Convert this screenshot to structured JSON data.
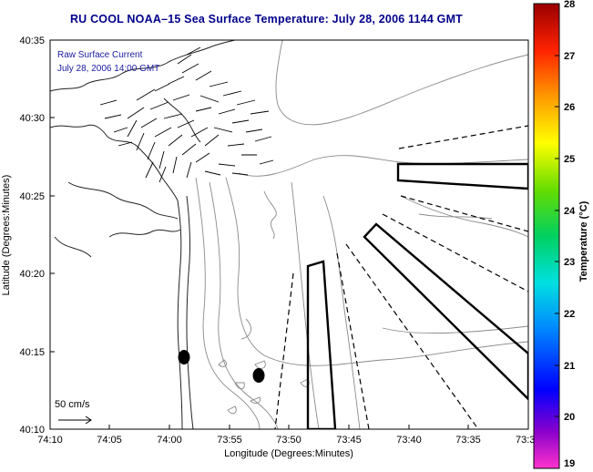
{
  "title": "RU COOL  NOAA–15  Sea Surface Temperature:  July 28, 2006 1144 GMT",
  "overlay": {
    "line1": "Raw Surface Current",
    "line2": "July 28, 2006 14:00 GMT",
    "scale_label": "50 cm/s"
  },
  "axes": {
    "xlabel": "Longitude (Degrees:Minutes)",
    "ylabel": "Latitude (Degrees:Minutes)",
    "xticks": [
      "74:10",
      "74:05",
      "74:00",
      "73:55",
      "73:50",
      "73:45",
      "73:40",
      "73:35",
      "73:3"
    ],
    "yticks": [
      "40:35",
      "40:30",
      "40:25",
      "40:20",
      "40:15",
      "40:10"
    ]
  },
  "colorbar": {
    "label": "Temperature (°C)",
    "ticks": [
      "28",
      "27",
      "26",
      "25",
      "24",
      "23",
      "22",
      "21",
      "20",
      "19"
    ],
    "min": 19,
    "max": 28
  },
  "colors": {
    "title": "#00008b",
    "overlay_text": "#1a1aa0",
    "contour": "#8a8a8a",
    "coast": "#222222"
  },
  "features": {
    "current_arrows": "hf-radar-surface-current-vectors",
    "dark_markers": 2,
    "dumpsite_polygons": 3
  }
}
